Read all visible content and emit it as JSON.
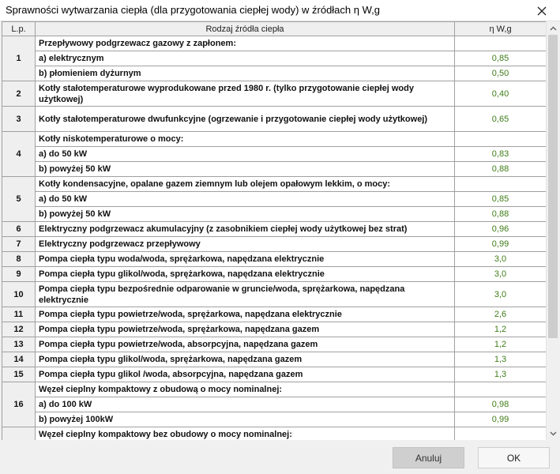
{
  "window": {
    "title": "Sprawności wytwarzania ciepła (dla przygotowania ciepłej wody) w źródłach η W,g"
  },
  "table": {
    "headers": {
      "lp": "L.p.",
      "source": "Rodzaj źródła ciepła",
      "eta": "η W,g"
    },
    "rows": [
      {
        "lp": "1",
        "desc": "Przepływowy podgrzewacz gazowy z zapłonem:",
        "val": "",
        "h": 19,
        "sub": false,
        "span": 3
      },
      {
        "desc": "a) elektrycznym",
        "val": "0,85",
        "h": 19,
        "sub": true
      },
      {
        "desc": "b) płomieniem dyżurnym",
        "val": "0,50",
        "h": 19,
        "sub": true
      },
      {
        "lp": "2",
        "desc": "Kotły stałotemperaturowe wyprodukowane przed 1980 r. (tylko przygotowanie ciepłej wody użytkowej)",
        "val": "0,40",
        "h": 32,
        "sub": false,
        "span": 1
      },
      {
        "lp": "3",
        "desc": "Kotły stałotemperaturowe dwufunkcyjne (ogrzewanie i przygotowanie ciepłej wody użytkowej)",
        "val": "0,65",
        "h": 32,
        "sub": false,
        "span": 1
      },
      {
        "lp": "4",
        "desc": "Kotły niskotemperaturowe o mocy:",
        "val": "",
        "h": 19,
        "sub": false,
        "span": 3
      },
      {
        "desc": "a) do 50 kW",
        "val": "0,83",
        "h": 19,
        "sub": true
      },
      {
        "desc": "b) powyżej 50 kW",
        "val": "0,88",
        "h": 19,
        "sub": true
      },
      {
        "lp": "5",
        "desc": "Kotły kondensacyjne, opalane gazem ziemnym lub olejem opałowym lekkim, o mocy:",
        "val": "",
        "h": 19,
        "sub": false,
        "span": 3
      },
      {
        "desc": "a) do 50 kW",
        "val": "0,85",
        "h": 19,
        "sub": true
      },
      {
        "desc": "b) powyżej 50 kW",
        "val": "0,88",
        "h": 19,
        "sub": true
      },
      {
        "lp": "6",
        "desc": "Elektryczny podgrzewacz akumulacyjny (z zasobnikiem ciepłej wody użytkowej bez strat)",
        "val": "0,96",
        "h": 19,
        "sub": false,
        "span": 1
      },
      {
        "lp": "7",
        "desc": "Elektryczny podgrzewacz przepływowy",
        "val": "0,99",
        "h": 19,
        "sub": false,
        "span": 1
      },
      {
        "lp": "8",
        "desc": "Pompa ciepła typu woda/woda, sprężarkowa, napędzana elektrycznie",
        "val": "3,0",
        "h": 19,
        "sub": false,
        "span": 1
      },
      {
        "lp": "9",
        "desc": "Pompa ciepła typu glikol/woda, sprężarkowa, napędzana elektrycznie",
        "val": "3,0",
        "h": 19,
        "sub": false,
        "span": 1
      },
      {
        "lp": "10",
        "desc": "Pompa ciepła typu bezpośrednie odparowanie w gruncie/woda, sprężarkowa, napędzana elektrycznie",
        "val": "3,0",
        "h": 32,
        "sub": false,
        "span": 1
      },
      {
        "lp": "11",
        "desc": "Pompa ciepła typu powietrze/woda, sprężarkowa, napędzana elektrycznie",
        "val": "2,6",
        "h": 19,
        "sub": false,
        "span": 1
      },
      {
        "lp": "12",
        "desc": "Pompa ciepła typu powietrze/woda, sprężarkowa, napędzana gazem",
        "val": "1,2",
        "h": 19,
        "sub": false,
        "span": 1
      },
      {
        "lp": "13",
        "desc": "Pompa ciepła typu powietrze/woda, absorpcyjna, napędzana gazem",
        "val": "1,2",
        "h": 19,
        "sub": false,
        "span": 1
      },
      {
        "lp": "14",
        "desc": "Pompa ciepła typu glikol/woda, sprężarkowa, napędzana gazem",
        "val": "1,3",
        "h": 19,
        "sub": false,
        "span": 1
      },
      {
        "lp": "15",
        "desc": "Pompa ciepła typu glikol /woda, absorpcyjna, napędzana gazem",
        "val": "1,3",
        "h": 19,
        "sub": false,
        "span": 1
      },
      {
        "lp": "16",
        "desc": "Węzeł cieplny kompaktowy z obudową o mocy nominalnej:",
        "val": "",
        "h": 19,
        "sub": false,
        "span": 3
      },
      {
        "desc": "a) do 100 kW",
        "val": "0,98",
        "h": 19,
        "sub": true
      },
      {
        "desc": "b) powyżej 100kW",
        "val": "0,99",
        "h": 19,
        "sub": true
      },
      {
        "lp": "",
        "desc": "Węzeł cieplny kompaktowy bez obudowy o mocy nominalnej:",
        "val": "",
        "h": 19,
        "sub": false,
        "span": 1
      }
    ]
  },
  "buttons": {
    "cancel": "Anuluj",
    "ok": "OK"
  },
  "icons": {
    "close": "close-icon",
    "scroll_up": "chevron-up-icon",
    "scroll_down": "chevron-down-icon"
  },
  "colors": {
    "value_text": "#3e7d18",
    "header_bg": "#efefef",
    "grid_line": "#a0a0a0"
  }
}
